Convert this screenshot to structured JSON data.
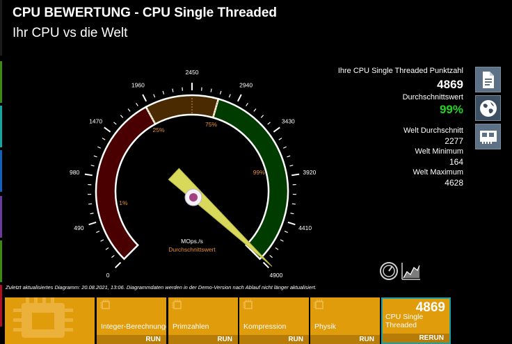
{
  "header": {
    "title": "CPU BEWERTUNG - CPU Single Threaded",
    "subtitle": "Ihr CPU vs die Welt"
  },
  "gauge": {
    "min": 0,
    "max": 4900,
    "value": 4869,
    "scale_labels": [
      "0",
      "490",
      "980",
      "1470",
      "1960",
      "2450",
      "2940",
      "3430",
      "3920",
      "4410",
      "4900"
    ],
    "percentile_labels": [
      {
        "label": "1%",
        "value": 640
      },
      {
        "label": "25%",
        "value": 1930
      },
      {
        "label": "75%",
        "value": 2740
      },
      {
        "label": "99%",
        "value": 3800
      }
    ],
    "unit": "MOps./s",
    "average_label": "Durchschnittswert",
    "colors": {
      "low": "#4a0000",
      "mid": "#4a2a00",
      "high": "#003c00",
      "needle": "#d8d85a",
      "tick_label_pct": "#e89030"
    }
  },
  "stats": {
    "score_label": "Ihre CPU Single Threaded Punktzahl",
    "score": "4869",
    "average_label": "Durchschnittswert",
    "average_pct": "99%",
    "world_avg_label": "Welt Durchschnitt",
    "world_avg": "2277",
    "world_min_label": "Welt Minimum",
    "world_min": "164",
    "world_max_label": "Welt Maximum",
    "world_max": "4628"
  },
  "side_buttons": [
    {
      "icon": "report-icon"
    },
    {
      "icon": "globe-icon"
    },
    {
      "icon": "hardware-card-icon"
    }
  ],
  "footnote": "Zuletzt aktualisiertes Diagramm: 20.08.2021, 13:06. Diagrammdaten werden in der Demo-Version nach Ablauf nicht länger aktualisiert.",
  "tiles": [
    {
      "name": "",
      "run": ""
    },
    {
      "name": "Integer-Berechnungen",
      "run": "RUN"
    },
    {
      "name": "Primzahlen",
      "run": "RUN"
    },
    {
      "name": "Kompression",
      "run": "RUN"
    },
    {
      "name": "Physik",
      "run": "RUN"
    },
    {
      "name": "CPU Single Threaded",
      "run": "RERUN",
      "score": "4869"
    }
  ]
}
